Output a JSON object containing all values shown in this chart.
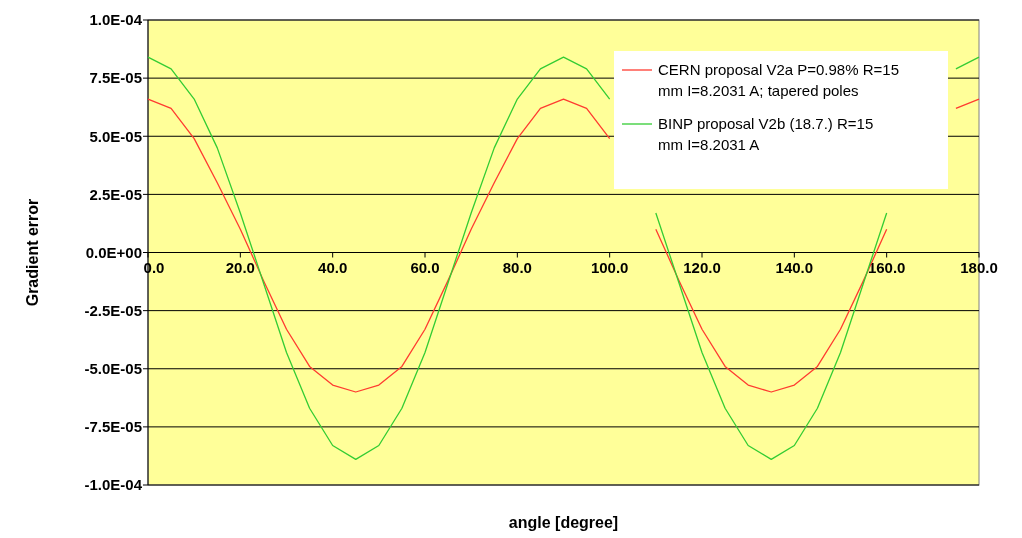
{
  "chart_data": {
    "type": "line",
    "xlabel": "angle [degree]",
    "ylabel": "Gradient error",
    "x": [
      0,
      5,
      10,
      15,
      20,
      25,
      30,
      35,
      40,
      45,
      50,
      55,
      60,
      65,
      70,
      75,
      80,
      85,
      90,
      95,
      100,
      105,
      110,
      115,
      120,
      125,
      130,
      135,
      140,
      145,
      150,
      155,
      160,
      165,
      170,
      175,
      180
    ],
    "series": [
      {
        "name": "CERN proposal V2a P=0.98% R=15 mm I=8.2031 A; tapered poles",
        "color": "#ff3b30",
        "values": [
          6.6e-05,
          6.2e-05,
          4.9e-05,
          3e-05,
          1e-05,
          -1.2e-05,
          -3.3e-05,
          -4.9e-05,
          -5.7e-05,
          -6e-05,
          -5.7e-05,
          -4.9e-05,
          -3.3e-05,
          -1.2e-05,
          1e-05,
          3e-05,
          4.9e-05,
          6.2e-05,
          6.6e-05,
          6.2e-05,
          4.9e-05,
          null,
          1e-05,
          -1.2e-05,
          -3.3e-05,
          -4.9e-05,
          -5.7e-05,
          -6e-05,
          -5.7e-05,
          -4.9e-05,
          -3.3e-05,
          -1.2e-05,
          1e-05,
          null,
          null,
          6.2e-05,
          6.6e-05
        ]
      },
      {
        "name": "BINP proposal V2b (18.7.) R=15 mm I=8.2031 A",
        "color": "#33cc33",
        "values": [
          8.4e-05,
          7.9e-05,
          6.6e-05,
          4.5e-05,
          1.7e-05,
          -1.3e-05,
          -4.3e-05,
          -6.7e-05,
          -8.3e-05,
          -8.9e-05,
          -8.3e-05,
          -6.7e-05,
          -4.3e-05,
          -1.3e-05,
          1.7e-05,
          4.5e-05,
          6.6e-05,
          7.9e-05,
          8.4e-05,
          7.9e-05,
          6.6e-05,
          null,
          1.7e-05,
          -1.3e-05,
          -4.3e-05,
          -6.7e-05,
          -8.3e-05,
          -8.9e-05,
          -8.3e-05,
          -6.7e-05,
          -4.3e-05,
          -1.3e-05,
          1.7e-05,
          null,
          null,
          7.9e-05,
          8.4e-05
        ]
      }
    ],
    "xlim": [
      0,
      180
    ],
    "xticks": [
      {
        "value": 0,
        "label": "0.0"
      },
      {
        "value": 20,
        "label": "20.0"
      },
      {
        "value": 40,
        "label": "40.0"
      },
      {
        "value": 60,
        "label": "60.0"
      },
      {
        "value": 80,
        "label": "80.0"
      },
      {
        "value": 100,
        "label": "100.0"
      },
      {
        "value": 120,
        "label": "120.0"
      },
      {
        "value": 140,
        "label": "140.0"
      },
      {
        "value": 160,
        "label": "160.0"
      },
      {
        "value": 180,
        "label": "180.0"
      }
    ],
    "ylim": [
      -0.0001,
      0.0001
    ],
    "yticks": [
      {
        "value": -0.0001,
        "label": "-1.0E-04"
      },
      {
        "value": -7.5e-05,
        "label": "-7.5E-05"
      },
      {
        "value": -5e-05,
        "label": "-5.0E-05"
      },
      {
        "value": -2.5e-05,
        "label": "-2.5E-05"
      },
      {
        "value": 0,
        "label": "0.0E+00"
      },
      {
        "value": 2.5e-05,
        "label": "2.5E-05"
      },
      {
        "value": 5e-05,
        "label": "5.0E-05"
      },
      {
        "value": 7.5e-05,
        "label": "7.5E-05"
      },
      {
        "value": 0.0001,
        "label": "1.0E-04"
      }
    ],
    "grid": "y",
    "legend": "top right",
    "marker": "none",
    "line_style": "solid"
  }
}
